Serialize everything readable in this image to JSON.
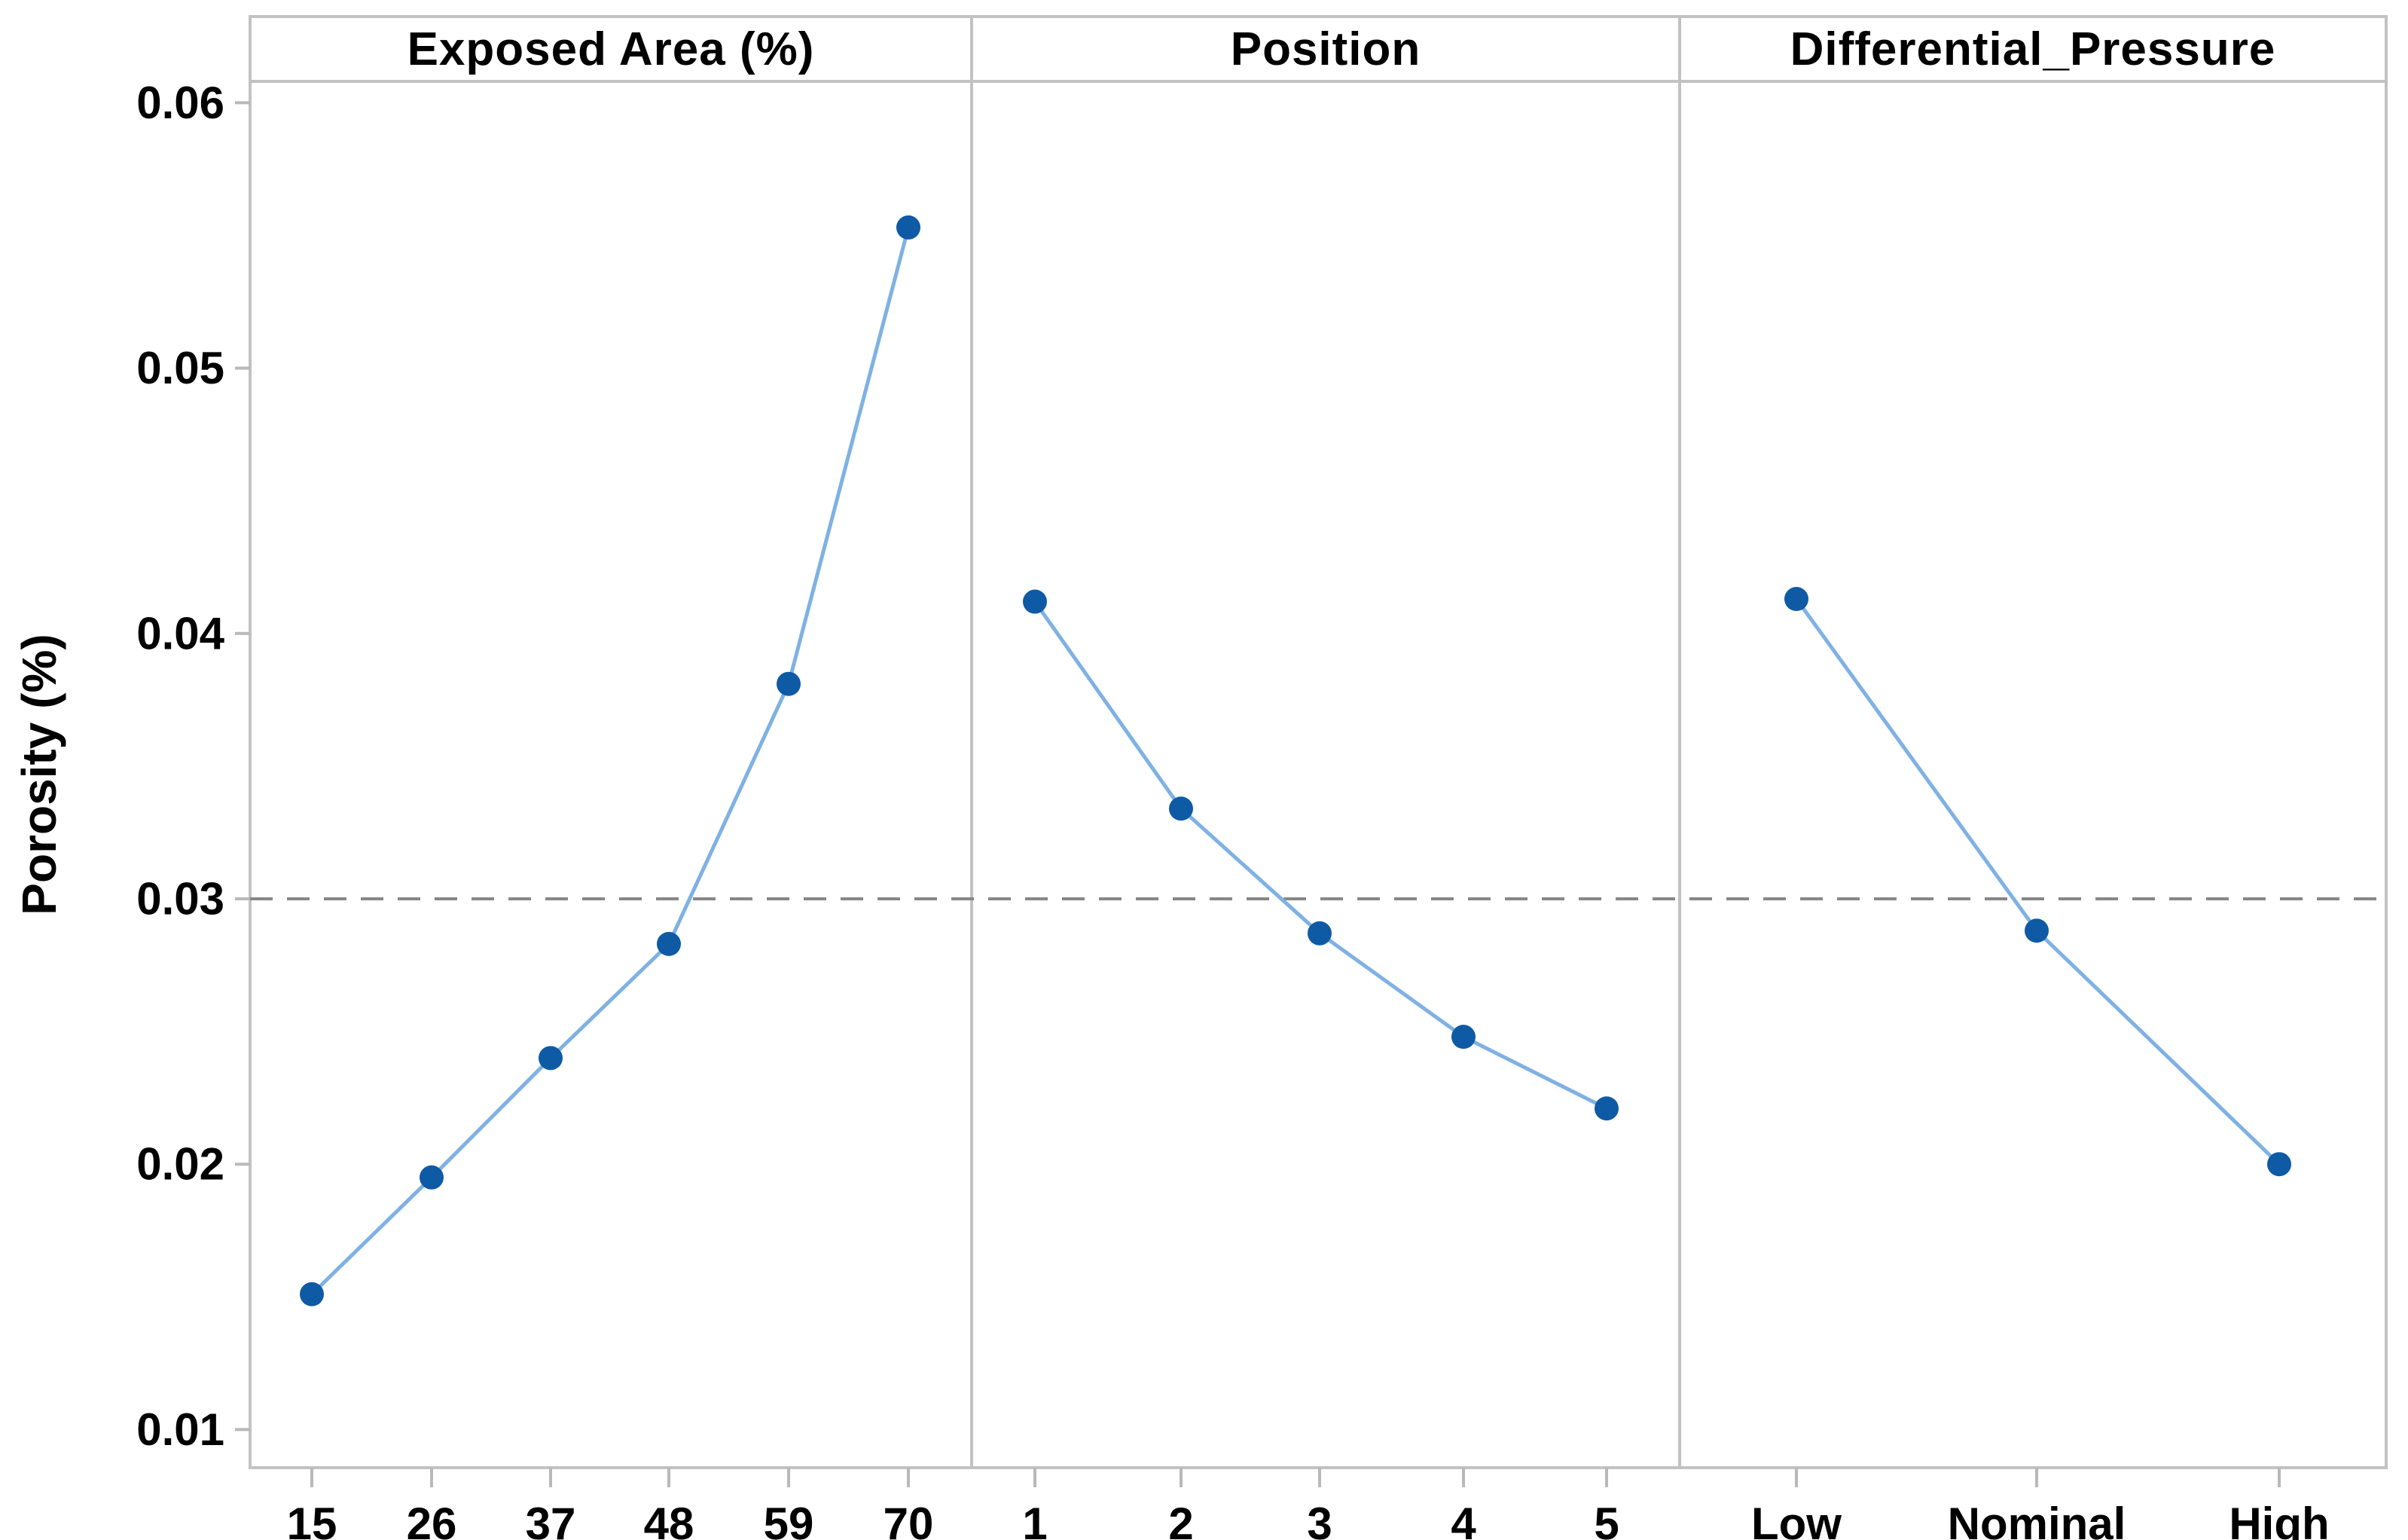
{
  "figure": {
    "kind": "main-effects-plot"
  },
  "y_axis": {
    "title": "Porosity (%)",
    "tick_labels": [
      "0.06",
      "0.05",
      "0.04",
      "0.03",
      "0.02",
      "0.01"
    ],
    "tick_values": [
      0.06,
      0.05,
      0.04,
      0.03,
      0.02,
      0.01
    ],
    "min": 0.01,
    "max": 0.06
  },
  "chart_data": {
    "type": "line",
    "title": "",
    "ylabel": "Porosity (%)",
    "ylim": [
      0.01,
      0.06
    ],
    "grid": false,
    "legend": false,
    "reference_line": {
      "value": 0.03,
      "style": "dashed"
    },
    "panels": [
      {
        "title": "Exposed Area (%)",
        "categories": [
          "15",
          "26",
          "37",
          "48",
          "59",
          "70"
        ],
        "values": [
          0.0151,
          0.0195,
          0.024,
          0.0283,
          0.0381,
          0.0553
        ]
      },
      {
        "title": "Position",
        "categories": [
          "1",
          "2",
          "3",
          "4",
          "5"
        ],
        "values": [
          0.0412,
          0.0334,
          0.0287,
          0.0248,
          0.0221
        ]
      },
      {
        "title": "Differential_Pressure",
        "categories": [
          "Low",
          "Nominal",
          "High"
        ],
        "values": [
          0.0413,
          0.0288,
          0.02
        ]
      }
    ],
    "colors": {
      "line": "#7FB1E3",
      "marker": "#0F5AA5",
      "frame": "#C2C2C2",
      "tick": "#B9B9B9",
      "reference": "#878787",
      "text": "#000000"
    }
  }
}
